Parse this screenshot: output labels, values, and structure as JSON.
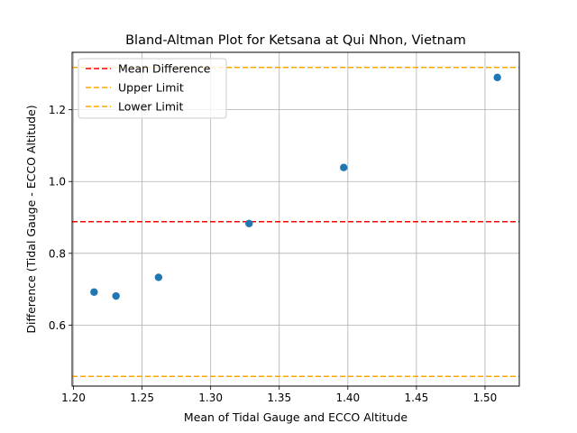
{
  "chart_data": {
    "type": "scatter",
    "title": "Bland-Altman Plot for Ketsana at Qui Nhon, Vietnam",
    "xlabel": "Mean of Tidal Gauge and ECCO Altitude",
    "ylabel": "Difference (Tidal Gauge - ECCO Altitude)",
    "xlim": [
      1.199,
      1.525
    ],
    "ylim": [
      0.43,
      1.36
    ],
    "xticks": [
      "1.20",
      "1.25",
      "1.30",
      "1.35",
      "1.40",
      "1.45",
      "1.50"
    ],
    "yticks": [
      "0.6",
      "0.8",
      "1.0",
      "1.2"
    ],
    "grid": true,
    "legend_position": "upper-left",
    "points": [
      {
        "x": 1.215,
        "y": 0.692
      },
      {
        "x": 1.231,
        "y": 0.681
      },
      {
        "x": 1.262,
        "y": 0.733
      },
      {
        "x": 1.328,
        "y": 0.883
      },
      {
        "x": 1.397,
        "y": 1.039
      },
      {
        "x": 1.509,
        "y": 1.29
      }
    ],
    "point_color": "#1f77b4",
    "reference_lines": [
      {
        "name": "Mean Difference",
        "y": 0.888,
        "color": "#ff0000"
      },
      {
        "name": "Upper Limit",
        "y": 1.318,
        "color": "#ffa500"
      },
      {
        "name": "Lower Limit",
        "y": 0.457,
        "color": "#ffa500"
      }
    ]
  }
}
